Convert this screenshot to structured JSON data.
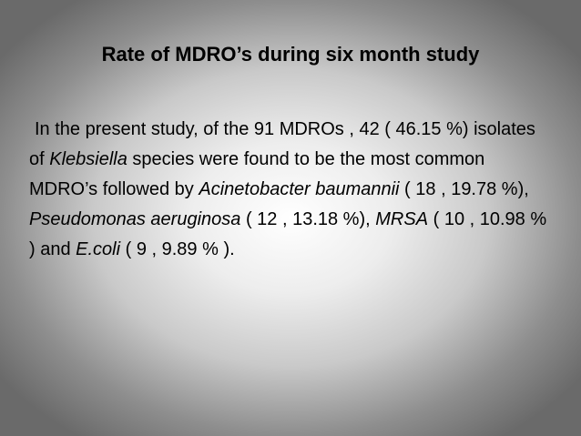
{
  "slide": {
    "title": "Rate of MDRO’s during six month study",
    "body": {
      "part1": "In the present study, of the 91 MDROs , 42 ( 46.15 %) isolates of ",
      "klebsiella": "Klebsiella",
      "part2": " species were found to be the most common MDRO’s followed by ",
      "acinetobacter": "Acinetobacter baumannii",
      "part3": " ( 18 , 19.78 %), ",
      "pseudomonas": "Pseudomonas aeruginosa",
      "part4": " ( 12 , 13.18 %), ",
      "mrsa": "MRSA",
      "part5": " ( 10 , 10.98 % ) and ",
      "ecoli": "E.coli",
      "part6": " ( 9 , 9.89 % )."
    }
  }
}
